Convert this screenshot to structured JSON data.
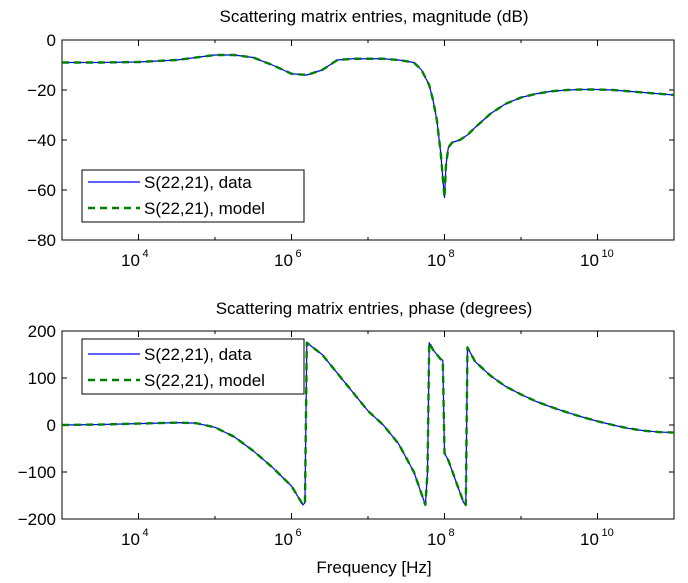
{
  "chart_data": [
    {
      "type": "line",
      "title": "Scattering matrix entries, magnitude (dB)",
      "xlabel": "",
      "ylabel": "",
      "xscale": "log",
      "xlim": [
        1000,
        100000000000.0
      ],
      "ylim": [
        -80,
        0
      ],
      "xticks": [
        10000,
        1000000,
        100000000,
        10000000000
      ],
      "xtick_labels": [
        [
          "10",
          "4"
        ],
        [
          "10",
          "6"
        ],
        [
          "10",
          "8"
        ],
        [
          "10",
          "10"
        ]
      ],
      "yticks": [
        0,
        -20,
        -40,
        -60,
        -80
      ],
      "ytick_labels": [
        "0",
        "−20",
        "−40",
        "−60",
        "−80"
      ],
      "legend_position": "bottom-left",
      "grid": false,
      "series": [
        {
          "name": "S(22,21), data",
          "color": "#0000ff",
          "style": "solid",
          "x": [
            1000,
            3162,
            10000,
            31623,
            100000,
            177828,
            316228,
            562341,
            1000000,
            1584893,
            2511886,
            3981072,
            6309573,
            10000000,
            15848932,
            25118864,
            39810717,
            50118723,
            63095734,
            70794578,
            79432823,
            89125094,
            95499259,
            100000000,
            104712855,
            112201845,
            125892541,
            158489319,
            199526231,
            251188643,
            398107171,
            630957344,
            1000000000,
            1584893192,
            2511886432,
            3981071706,
            6309573445,
            10000000000,
            15848931925,
            25118864315,
            39810717055,
            63095734448,
            100000000000
          ],
          "y": [
            -9,
            -9,
            -8.8,
            -8,
            -6,
            -6,
            -7,
            -10,
            -13.5,
            -14,
            -12,
            -8,
            -7.5,
            -7.5,
            -7.5,
            -8,
            -9,
            -12,
            -18,
            -24,
            -32,
            -45,
            -56,
            -63,
            -50,
            -43,
            -41,
            -40,
            -38,
            -35,
            -29.5,
            -25.5,
            -23,
            -21.5,
            -20.5,
            -20,
            -19.8,
            -19.8,
            -20,
            -20.5,
            -21,
            -21.5,
            -22
          ]
        },
        {
          "name": "S(22,21), model",
          "color": "#008000",
          "style": "dashed",
          "x": [
            1000,
            3162,
            10000,
            31623,
            100000,
            177828,
            316228,
            562341,
            1000000,
            1584893,
            2511886,
            3981072,
            6309573,
            10000000,
            15848932,
            25118864,
            39810717,
            50118723,
            63095734,
            70794578,
            79432823,
            89125094,
            95499259,
            100000000,
            104712855,
            112201845,
            125892541,
            158489319,
            199526231,
            251188643,
            398107171,
            630957344,
            1000000000,
            1584893192,
            2511886432,
            3981071706,
            6309573445,
            10000000000,
            15848931925,
            25118864315,
            39810717055,
            63095734448,
            100000000000
          ],
          "y": [
            -9,
            -9,
            -8.8,
            -8,
            -6,
            -6,
            -7,
            -10,
            -13.5,
            -14,
            -12,
            -8,
            -7.5,
            -7.5,
            -7.5,
            -8,
            -9,
            -12,
            -18,
            -24,
            -32,
            -45,
            -56,
            -63,
            -50,
            -43,
            -41,
            -40,
            -38,
            -35,
            -29.5,
            -25.5,
            -23,
            -21.5,
            -20.5,
            -20,
            -19.8,
            -19.8,
            -20,
            -20.5,
            -21,
            -21.5,
            -22
          ]
        }
      ]
    },
    {
      "type": "line",
      "title": "Scattering matrix entries, phase (degrees)",
      "xlabel": "Frequency [Hz]",
      "ylabel": "",
      "xscale": "log",
      "xlim": [
        1000,
        100000000000.0
      ],
      "ylim": [
        -200,
        200
      ],
      "xticks": [
        10000,
        1000000,
        100000000,
        10000000000
      ],
      "xtick_labels": [
        [
          "10",
          "4"
        ],
        [
          "10",
          "6"
        ],
        [
          "10",
          "8"
        ],
        [
          "10",
          "10"
        ]
      ],
      "yticks": [
        200,
        100,
        0,
        -100,
        -200
      ],
      "ytick_labels": [
        "200",
        "100",
        "0",
        "−100",
        "−200"
      ],
      "legend_position": "top-left",
      "grid": false,
      "series": [
        {
          "name": "S(22,21), data",
          "color": "#0000ff",
          "style": "solid",
          "x": [
            1000,
            3162,
            10000,
            31623,
            56234,
            100000,
            177828,
            316228,
            562341,
            1000000,
            1412538,
            1500000,
            1584893,
            2511886,
            3981072,
            6309573,
            10000000,
            15848932,
            25118864,
            39810717,
            56234133,
            60000000,
            63095734,
            70794578,
            79432823,
            89125094,
            95000000,
            100000000,
            112201845,
            141253754,
            177827941,
            190000000,
            199526231,
            251188643,
            398107171,
            630957344,
            1000000000,
            1584893192,
            2511886432,
            3981071706,
            6309573445,
            10000000000,
            15848931925,
            25118864315,
            39810717055,
            63095734448,
            100000000000
          ],
          "y": [
            0,
            1,
            3,
            5,
            4,
            -5,
            -25,
            -55,
            -90,
            -130,
            -170,
            -165,
            175,
            150,
            110,
            70,
            30,
            0,
            -40,
            -100,
            -170,
            -100,
            175,
            160,
            150,
            140,
            138,
            -60,
            -75,
            -120,
            -165,
            -170,
            165,
            135,
            105,
            82,
            65,
            50,
            38,
            27,
            17,
            8,
            0,
            -7,
            -12,
            -15,
            -16
          ]
        },
        {
          "name": "S(22,21), model",
          "color": "#008000",
          "style": "dashed",
          "x": [
            1000,
            3162,
            10000,
            31623,
            56234,
            100000,
            177828,
            316228,
            562341,
            1000000,
            1412538,
            1500000,
            1584893,
            2511886,
            3981072,
            6309573,
            10000000,
            15848932,
            25118864,
            39810717,
            56234133,
            60000000,
            63095734,
            70794578,
            79432823,
            89125094,
            95000000,
            100000000,
            112201845,
            141253754,
            177827941,
            190000000,
            199526231,
            251188643,
            398107171,
            630957344,
            1000000000,
            1584893192,
            2511886432,
            3981071706,
            6309573445,
            10000000000,
            15848931925,
            25118864315,
            39810717055,
            63095734448,
            100000000000
          ],
          "y": [
            0,
            1,
            3,
            5,
            4,
            -5,
            -25,
            -55,
            -90,
            -130,
            -170,
            -165,
            175,
            150,
            110,
            70,
            30,
            0,
            -40,
            -100,
            -170,
            -100,
            175,
            160,
            150,
            140,
            138,
            -60,
            -75,
            -120,
            -165,
            -170,
            165,
            135,
            105,
            82,
            65,
            50,
            38,
            27,
            17,
            8,
            0,
            -7,
            -12,
            -15,
            -16
          ]
        }
      ]
    }
  ]
}
